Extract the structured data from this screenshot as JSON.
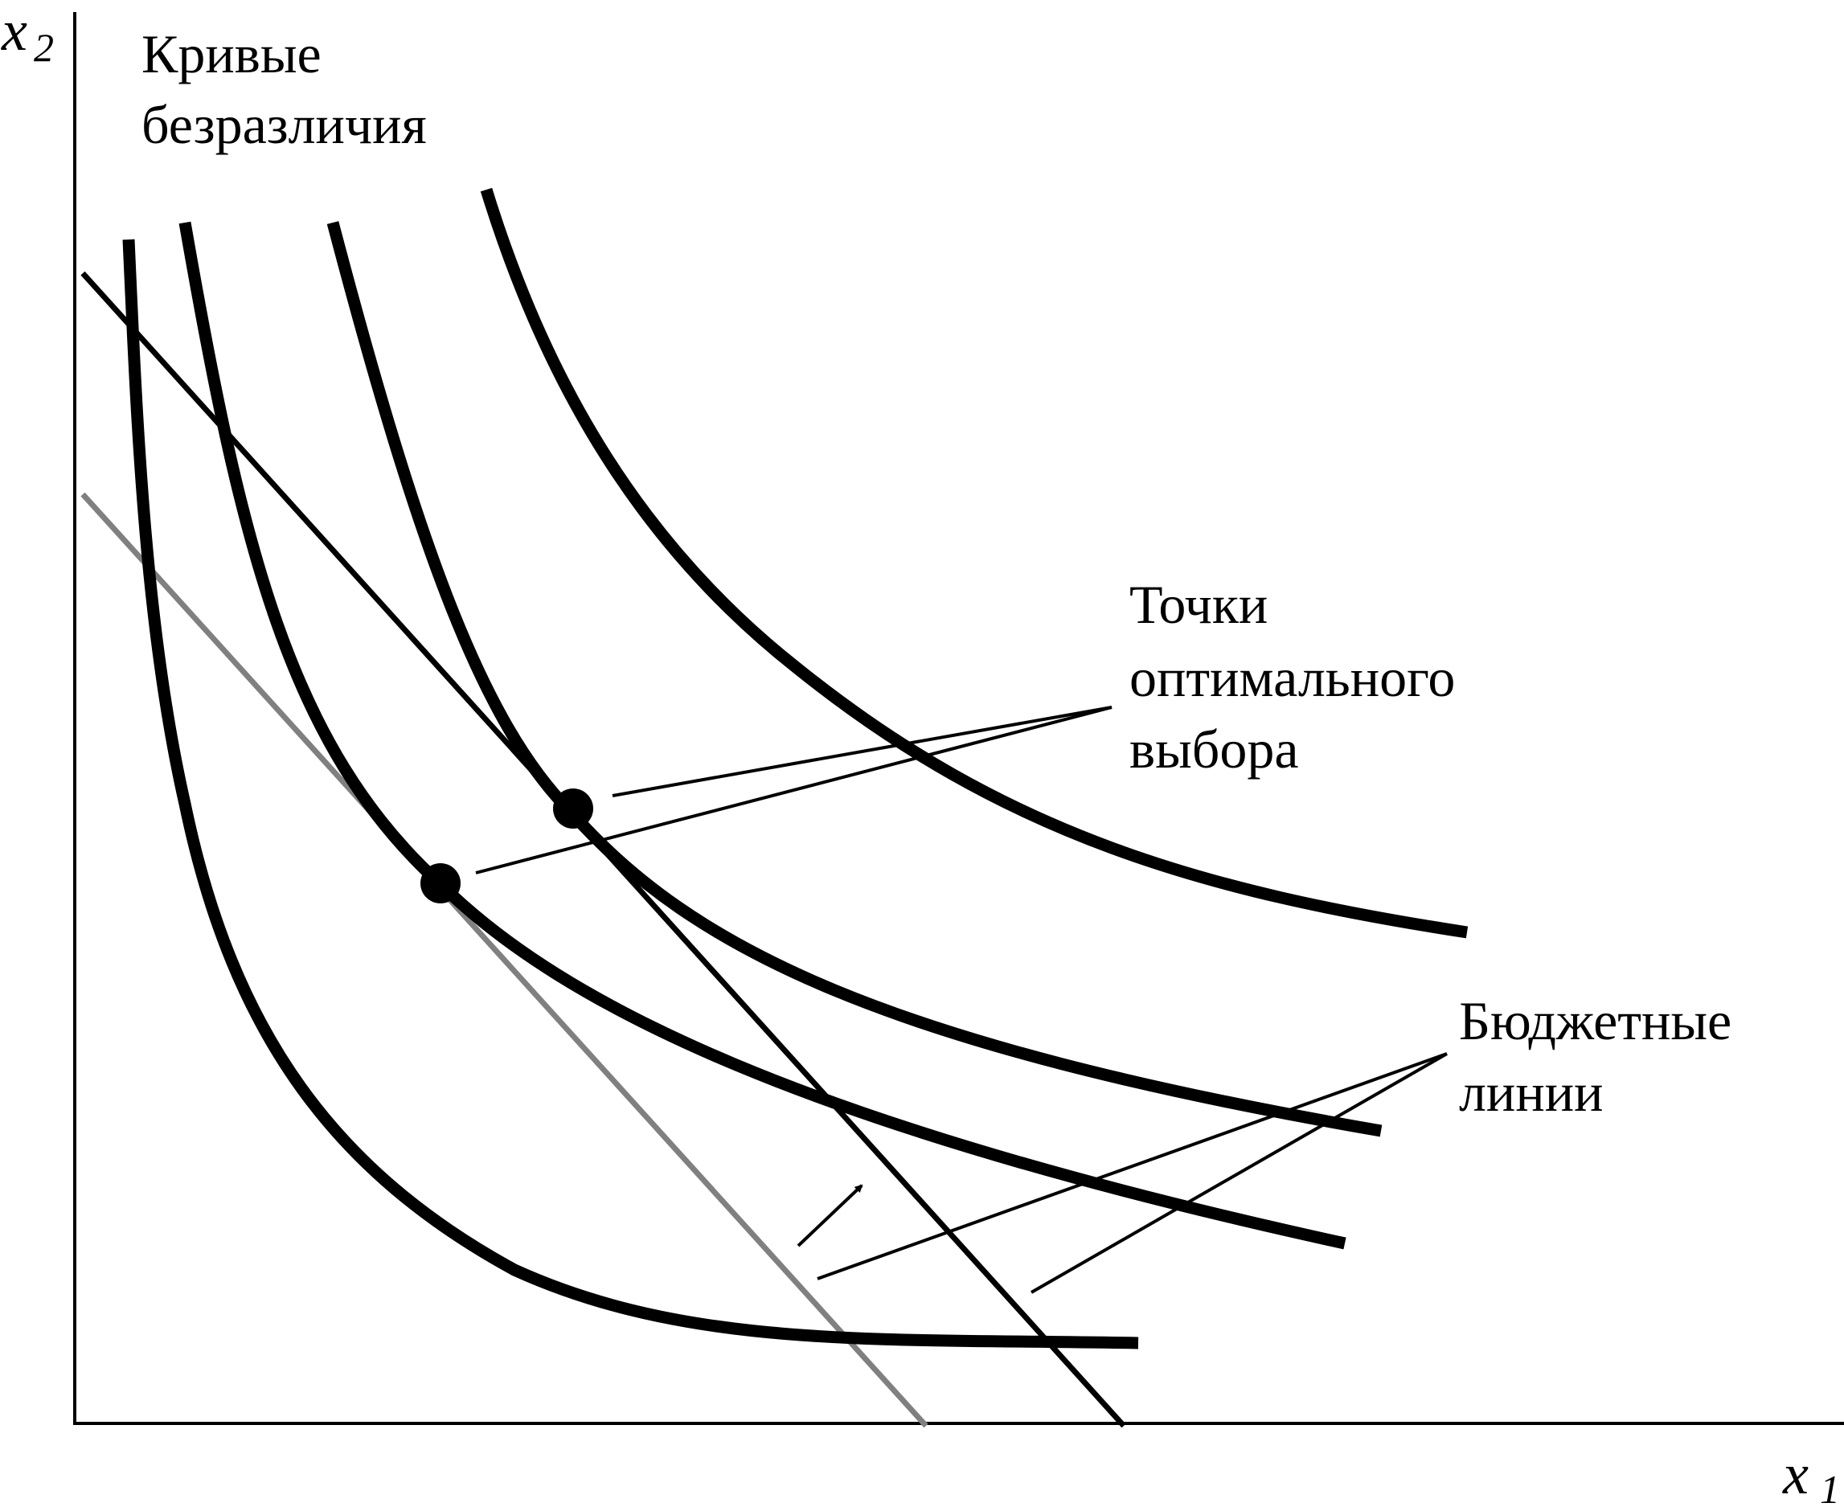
{
  "axes": {
    "y": {
      "symbol": "x",
      "subscript": "2"
    },
    "x": {
      "symbol": "x",
      "subscript": "1"
    }
  },
  "labels": {
    "indifference_curves": [
      "Кривые",
      "безразличия"
    ],
    "optimal_points": [
      "Точки",
      "оптимального",
      "выбора"
    ],
    "budget_lines": [
      "Бюджетные",
      "линии"
    ]
  },
  "colors": {
    "ink": "#000000",
    "old_budget_line": "#808080",
    "new_budget_line": "#000000"
  },
  "elements": {
    "indifference_curves": 4,
    "budget_lines": 2,
    "optimal_points": 2,
    "shift_arrow": "up-right"
  }
}
